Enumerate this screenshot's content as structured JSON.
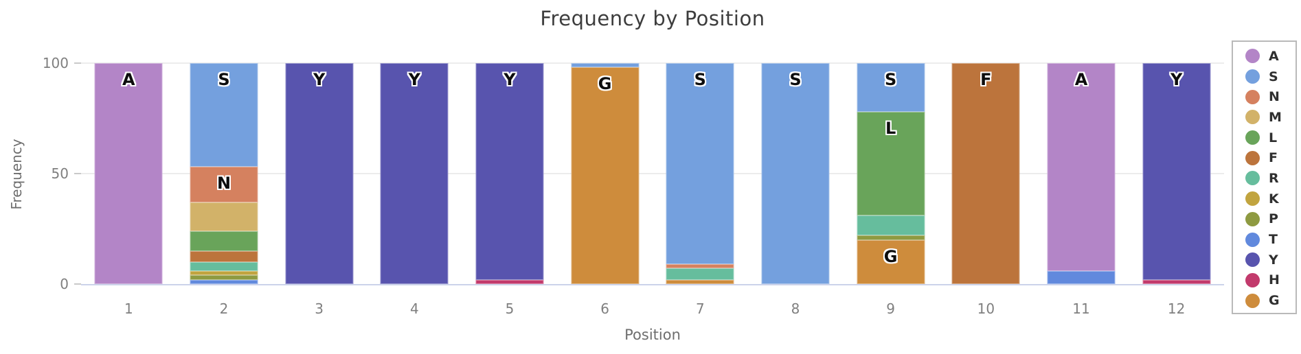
{
  "chart_data": {
    "type": "bar",
    "stacked": true,
    "title": "Frequency by Position",
    "xlabel": "Position",
    "ylabel": "Frequency",
    "ylim": [
      0,
      100
    ],
    "grid": "horizontal",
    "legend_position": "right-outside",
    "categories": [
      "1",
      "2",
      "3",
      "4",
      "5",
      "6",
      "7",
      "8",
      "9",
      "10",
      "11",
      "12"
    ],
    "y_ticks": [
      {
        "label": "100",
        "value": 100
      },
      {
        "label": "50",
        "value": 50
      },
      {
        "label": "0",
        "value": 0
      }
    ],
    "legend_order": [
      "A",
      "S",
      "N",
      "M",
      "L",
      "F",
      "R",
      "K",
      "P",
      "T",
      "Y",
      "H",
      "G"
    ],
    "palette": {
      "A": "#b385c7",
      "S": "#74a0de",
      "N": "#d5815f",
      "M": "#d2b269",
      "L": "#69a45a",
      "F": "#bc743c",
      "R": "#66bd9d",
      "K": "#c1a43f",
      "P": "#8e9a41",
      "T": "#6189dd",
      "Y": "#5854ae",
      "H": "#c23a6c",
      "G": "#ce8c3c"
    },
    "bars": [
      {
        "position": "1",
        "segments": [
          {
            "aa": "A",
            "value": 100,
            "labeled": true
          }
        ]
      },
      {
        "position": "2",
        "segments": [
          {
            "aa": "S",
            "value": 47,
            "labeled": true
          },
          {
            "aa": "N",
            "value": 16,
            "labeled": true
          },
          {
            "aa": "M",
            "value": 13,
            "labeled": false
          },
          {
            "aa": "L",
            "value": 9,
            "labeled": false
          },
          {
            "aa": "F",
            "value": 5,
            "labeled": false
          },
          {
            "aa": "R",
            "value": 4,
            "labeled": false
          },
          {
            "aa": "K",
            "value": 2,
            "labeled": false
          },
          {
            "aa": "P",
            "value": 2,
            "labeled": false
          },
          {
            "aa": "T",
            "value": 2,
            "labeled": false
          }
        ]
      },
      {
        "position": "3",
        "segments": [
          {
            "aa": "Y",
            "value": 100,
            "labeled": true
          }
        ]
      },
      {
        "position": "4",
        "segments": [
          {
            "aa": "Y",
            "value": 100,
            "labeled": true
          }
        ]
      },
      {
        "position": "5",
        "segments": [
          {
            "aa": "Y",
            "value": 98,
            "labeled": true
          },
          {
            "aa": "H",
            "value": 2,
            "labeled": false
          }
        ]
      },
      {
        "position": "6",
        "segments": [
          {
            "aa": "S",
            "value": 2,
            "labeled": false
          },
          {
            "aa": "G",
            "value": 98,
            "labeled": true
          }
        ]
      },
      {
        "position": "7",
        "segments": [
          {
            "aa": "S",
            "value": 91,
            "labeled": true
          },
          {
            "aa": "N",
            "value": 2,
            "labeled": false
          },
          {
            "aa": "R",
            "value": 5,
            "labeled": false
          },
          {
            "aa": "G",
            "value": 2,
            "labeled": false
          }
        ]
      },
      {
        "position": "8",
        "segments": [
          {
            "aa": "S",
            "value": 100,
            "labeled": true
          }
        ]
      },
      {
        "position": "9",
        "segments": [
          {
            "aa": "S",
            "value": 22,
            "labeled": true
          },
          {
            "aa": "L",
            "value": 47,
            "labeled": true
          },
          {
            "aa": "R",
            "value": 9,
            "labeled": false
          },
          {
            "aa": "P",
            "value": 2,
            "labeled": false
          },
          {
            "aa": "G",
            "value": 20,
            "labeled": true
          }
        ]
      },
      {
        "position": "10",
        "segments": [
          {
            "aa": "F",
            "value": 100,
            "labeled": true
          }
        ]
      },
      {
        "position": "11",
        "segments": [
          {
            "aa": "A",
            "value": 94,
            "labeled": true
          },
          {
            "aa": "T",
            "value": 6,
            "labeled": false
          }
        ]
      },
      {
        "position": "12",
        "segments": [
          {
            "aa": "Y",
            "value": 98,
            "labeled": true
          },
          {
            "aa": "H",
            "value": 2,
            "labeled": false
          }
        ]
      }
    ]
  }
}
